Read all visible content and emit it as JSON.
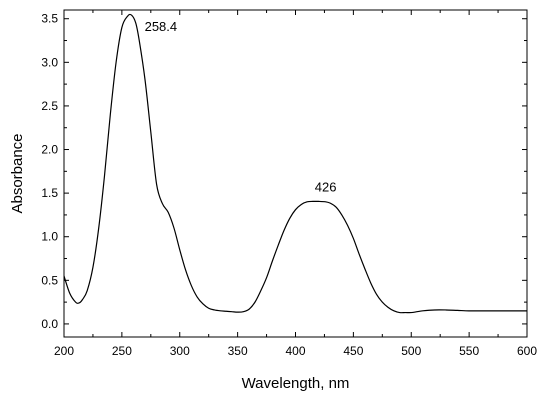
{
  "chart_data": {
    "type": "line",
    "title": "",
    "xlabel": "Wavelength, nm",
    "ylabel": "Absorbance",
    "xlim": [
      200,
      600
    ],
    "ylim": [
      -0.15,
      3.6
    ],
    "x_ticks": [
      200,
      250,
      300,
      350,
      400,
      450,
      500,
      550,
      600
    ],
    "x_tick_labels": [
      "200",
      "250",
      "300",
      "350",
      "400",
      "450",
      "500",
      "550",
      "600"
    ],
    "y_ticks": [
      0.0,
      0.5,
      1.0,
      1.5,
      2.0,
      2.5,
      3.0,
      3.5
    ],
    "y_tick_labels": [
      "0.0",
      "0.5",
      "1.0",
      "1.5",
      "2.0",
      "2.5",
      "3.0",
      "3.5"
    ],
    "grid": false,
    "legend": "none",
    "line_color": "#000000",
    "series": [
      {
        "x": [
          200,
          205,
          210,
          213,
          216,
          220,
          225,
          230,
          235,
          240,
          245,
          250,
          255,
          258.4,
          262,
          265,
          270,
          275,
          280,
          285,
          290,
          295,
          300,
          305,
          310,
          315,
          320,
          325,
          330,
          335,
          340,
          345,
          350,
          355,
          360,
          365,
          370,
          375,
          380,
          385,
          390,
          395,
          400,
          405,
          410,
          415,
          420,
          426,
          430,
          435,
          440,
          445,
          450,
          455,
          460,
          465,
          470,
          475,
          480,
          485,
          490,
          495,
          500,
          505,
          510,
          520,
          530,
          540,
          550,
          560,
          570,
          580,
          590,
          600
        ],
        "y": [
          0.55,
          0.35,
          0.25,
          0.24,
          0.28,
          0.38,
          0.65,
          1.1,
          1.7,
          2.4,
          3.0,
          3.4,
          3.53,
          3.54,
          3.45,
          3.25,
          2.8,
          2.2,
          1.6,
          1.38,
          1.28,
          1.1,
          0.85,
          0.62,
          0.44,
          0.31,
          0.23,
          0.18,
          0.16,
          0.15,
          0.145,
          0.14,
          0.135,
          0.14,
          0.17,
          0.25,
          0.38,
          0.53,
          0.72,
          0.9,
          1.07,
          1.21,
          1.31,
          1.37,
          1.4,
          1.405,
          1.405,
          1.4,
          1.385,
          1.34,
          1.25,
          1.13,
          0.98,
          0.8,
          0.63,
          0.47,
          0.34,
          0.25,
          0.19,
          0.15,
          0.13,
          0.13,
          0.13,
          0.14,
          0.15,
          0.16,
          0.16,
          0.155,
          0.15,
          0.15,
          0.15,
          0.15,
          0.15,
          0.15
        ]
      }
    ],
    "annotations": [
      {
        "text": "258.4",
        "x": 258.4,
        "y": 3.54
      },
      {
        "text": "426",
        "x": 426,
        "y": 1.405
      }
    ]
  }
}
